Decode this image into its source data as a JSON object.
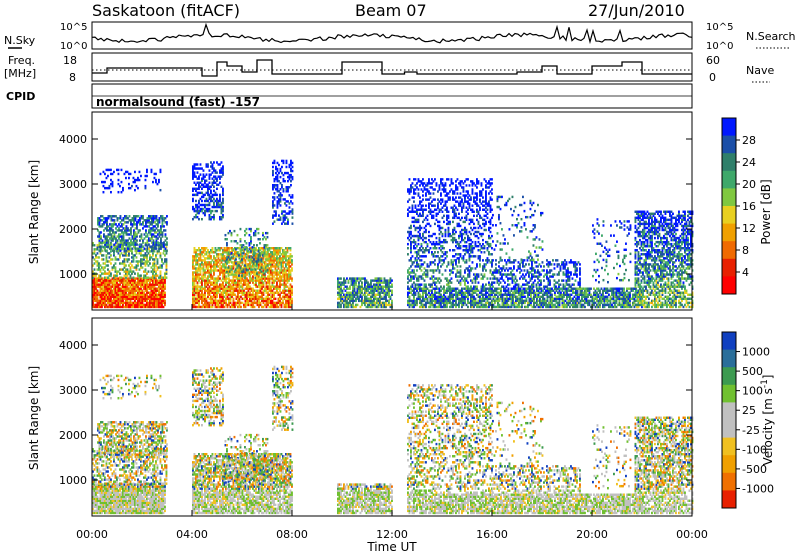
{
  "header": {
    "station": "Saskatoon (fitACF)",
    "beam": "Beam 07",
    "date": "27/Jun/2010"
  },
  "status_panels": {
    "nsky_label": "N.Sky",
    "nsky_tick_top": "10^5",
    "nsky_tick_bottom": "10^0",
    "nsearch_label": "N.Search",
    "nsearch_tick_top": "10^5",
    "nsearch_tick_bottom": "10^0",
    "freq_label_1": "Freq.",
    "freq_label_2": "[MHz]",
    "freq_tick_top": "18",
    "freq_tick_bottom": "8",
    "nave_label": "Nave",
    "nave_tick_top": "60",
    "nave_tick_bottom": "0",
    "cpid_label": "CPID",
    "cpid_text": "normalsound (fast) -157"
  },
  "chart_data": [
    {
      "type": "heatmap",
      "panel": "power",
      "ylabel": "Slant Range [km]",
      "yticks": [
        "1000",
        "2000",
        "3000",
        "4000"
      ],
      "ylim": [
        200,
        4600
      ],
      "xlim": [
        0,
        24
      ],
      "colorbar_label": "Power [dB]",
      "colorbar_ticks": [
        "28",
        "24",
        "20",
        "16",
        "12",
        "8",
        "4"
      ],
      "colorscale": [
        "#0018ff",
        "#1b4fa8",
        "#2f7f6a",
        "#3ea86a",
        "#80c840",
        "#e8d020",
        "#f0a000",
        "#f06a00",
        "#e82000",
        "#ff0000"
      ],
      "clim": [
        0,
        30
      ]
    },
    {
      "type": "heatmap",
      "panel": "velocity",
      "ylabel": "Slant Range [km]",
      "yticks": [
        "1000",
        "2000",
        "3000",
        "4000"
      ],
      "ylim": [
        200,
        4600
      ],
      "xlim": [
        0,
        24
      ],
      "colorbar_label": "Velocity [m s^-1]",
      "colorbar_ticks": [
        "1000",
        "500",
        "100",
        "25",
        "-25",
        "-100",
        "-500",
        "-1000"
      ],
      "colorscale": [
        "#1040c0",
        "#2a6e9a",
        "#3c9a50",
        "#70c030",
        "#c0c0c0",
        "#c0c0c0",
        "#f0c020",
        "#f0a000",
        "#f07000",
        "#e82000"
      ],
      "xticks": [
        "00:00",
        "04:00",
        "08:00",
        "12:00",
        "16:00",
        "20:00",
        "00:00"
      ],
      "xlabel": "Time UT"
    }
  ]
}
